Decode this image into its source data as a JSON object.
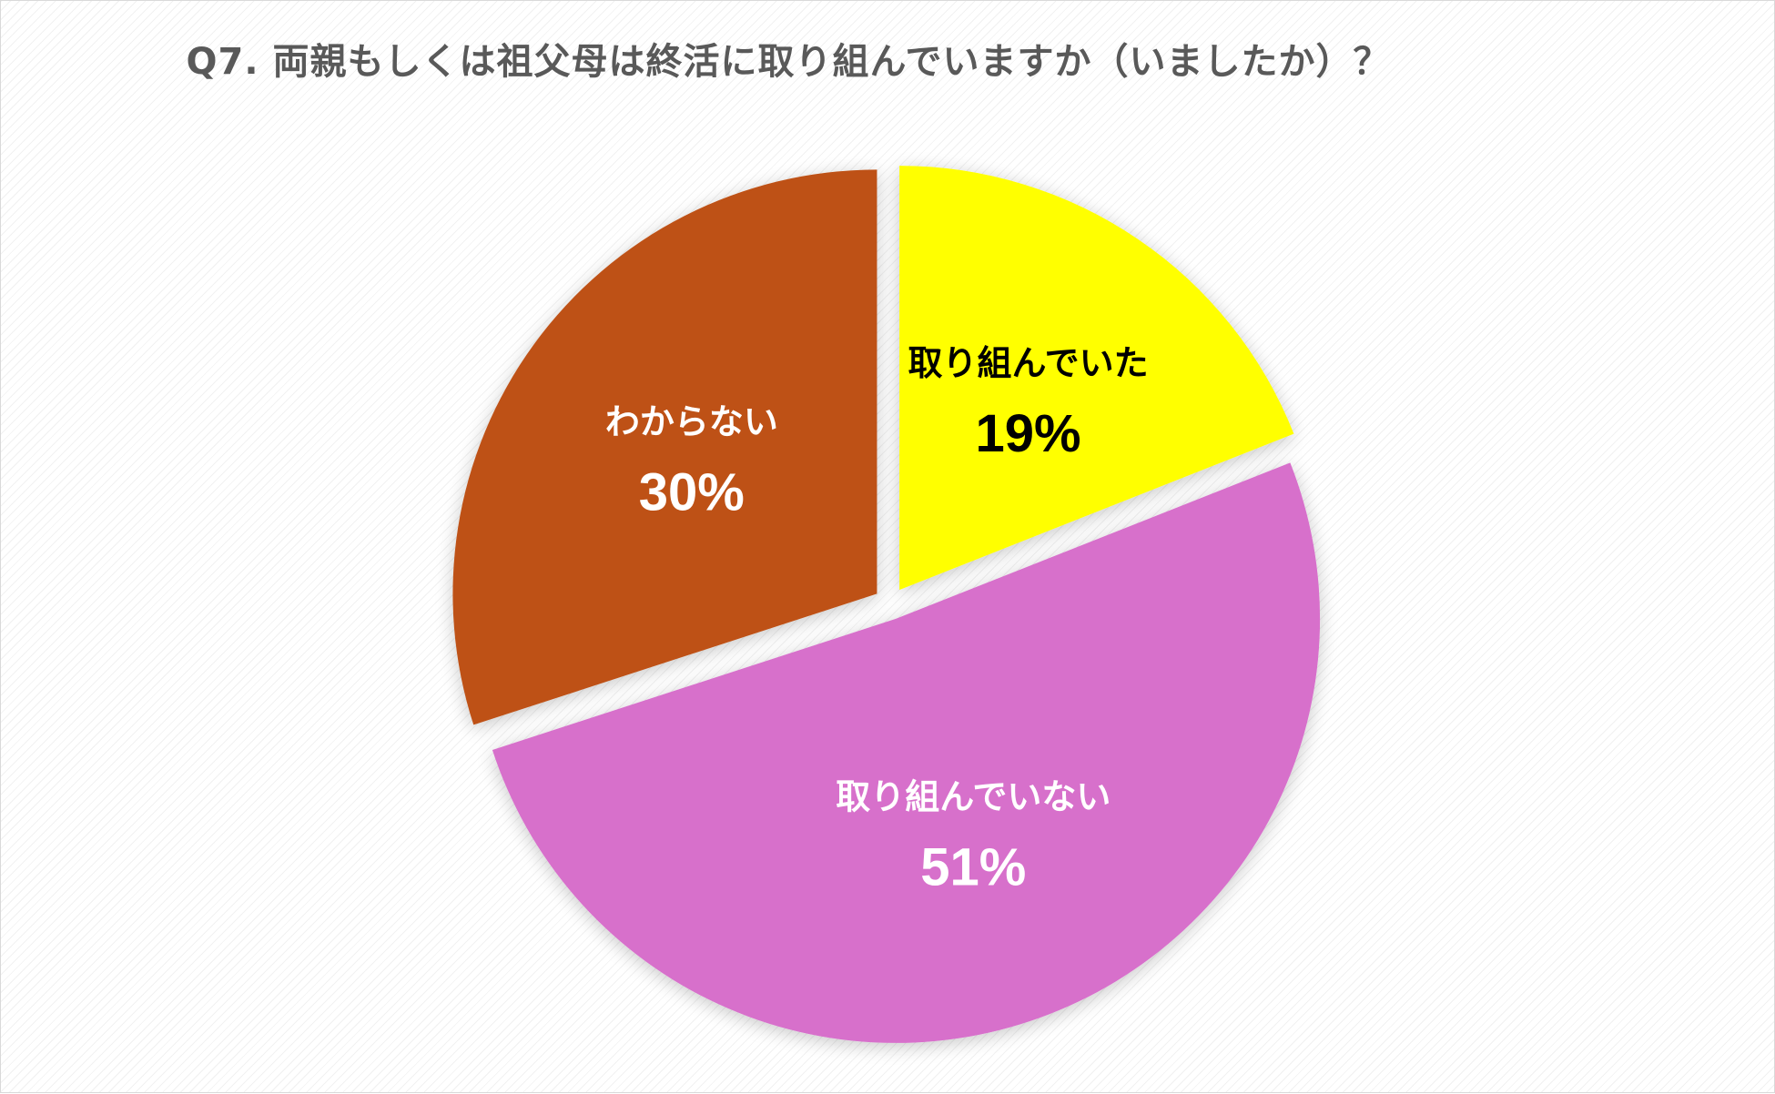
{
  "chart_data": {
    "type": "pie",
    "title": "Q7. 両親もしくは祖父母は終活に取り組んでいますか（いましたか）？",
    "slices": [
      {
        "label": "取り組んでいた",
        "value": 19,
        "value_label": "19%",
        "color": "#FFFF00",
        "text_color": "#000000"
      },
      {
        "label": "取り組んでいない",
        "value": 51,
        "value_label": "51%",
        "color": "#D76FCB",
        "text_color": "#FFFFFF"
      },
      {
        "label": "わからない",
        "value": 30,
        "value_label": "30%",
        "color": "#BE5115",
        "text_color": "#FFFFFF"
      }
    ],
    "legend": "none",
    "start_angle": "12 o'clock",
    "direction": "clockwise",
    "exploded": true
  }
}
